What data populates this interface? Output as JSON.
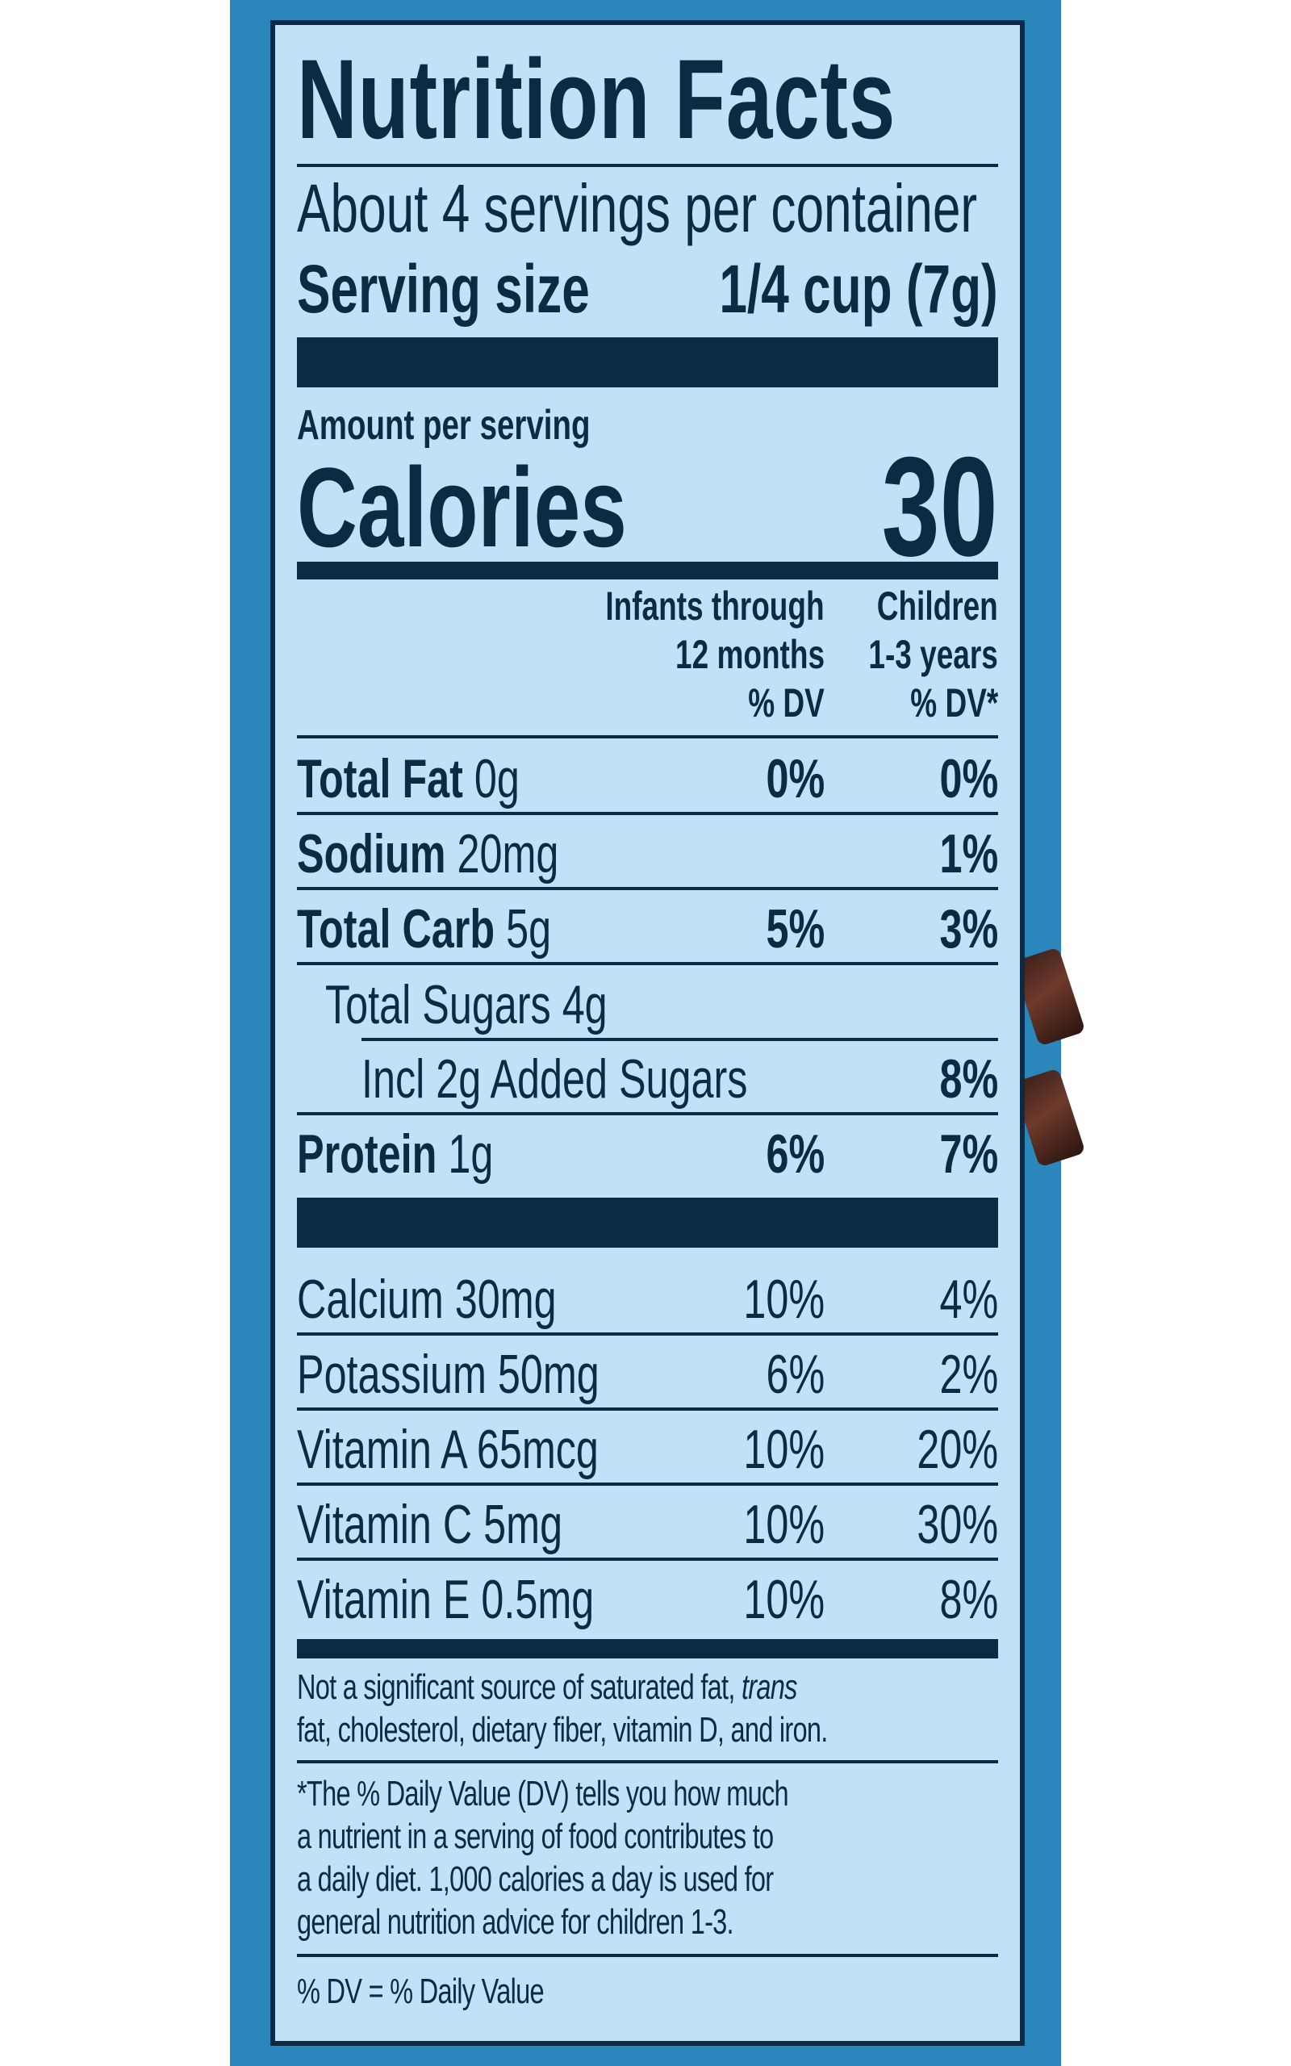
{
  "label": {
    "title": "Nutrition Facts",
    "servings_per_container": "About 4 servings per container",
    "serving_size_label": "Serving size",
    "serving_size_value": "1/4 cup (7g)",
    "amount_per_serving": "Amount per serving",
    "calories_label": "Calories",
    "calories_value": "30",
    "column_headers": {
      "infants": [
        "Infants through",
        "12 months",
        "% DV"
      ],
      "children": [
        "Children",
        "1-3 years",
        "% DV*"
      ]
    },
    "nutrients": [
      {
        "name": "Total Fat",
        "amount": "0g",
        "infant_dv": "0%",
        "child_dv": "0%"
      },
      {
        "name": "Sodium",
        "amount": "20mg",
        "infant_dv": "",
        "child_dv": "1%"
      },
      {
        "name": "Total Carb",
        "amount": "5g",
        "infant_dv": "5%",
        "child_dv": "3%"
      },
      {
        "name": "Total Sugars 4g",
        "amount": "",
        "infant_dv": "",
        "child_dv": ""
      },
      {
        "name": "Incl 2g Added Sugars",
        "amount": "",
        "infant_dv": "",
        "child_dv": "8%"
      },
      {
        "name": "Protein",
        "amount": "1g",
        "infant_dv": "6%",
        "child_dv": "7%"
      }
    ],
    "vitamins": [
      {
        "name": "Calcium 30mg",
        "infant_dv": "10%",
        "child_dv": "4%"
      },
      {
        "name": "Potassium 50mg",
        "infant_dv": "6%",
        "child_dv": "2%"
      },
      {
        "name": "Vitamin A 65mcg",
        "infant_dv": "10%",
        "child_dv": "20%"
      },
      {
        "name": "Vitamin C 5mg",
        "infant_dv": "10%",
        "child_dv": "30%"
      },
      {
        "name": "Vitamin E 0.5mg",
        "infant_dv": "10%",
        "child_dv": "8%"
      }
    ],
    "footnote_insignificant": {
      "pre": "Not a significant source of saturated fat, ",
      "italic": "trans",
      "post": "fat, cholesterol, dietary fiber, vitamin D, and iron."
    },
    "footnote_dv_lines": [
      "*The % Daily Value (DV) tells you how much",
      "a nutrient in a serving of food contributes to",
      "a daily diet. 1,000 calories a day is used for",
      "general nutrition advice for children 1-3."
    ],
    "footnote_legend": "% DV = % Daily Value"
  },
  "colors": {
    "label_background": "#c3e1f6",
    "ink": "#0d2a44",
    "package_blue": "#2a86bb"
  }
}
